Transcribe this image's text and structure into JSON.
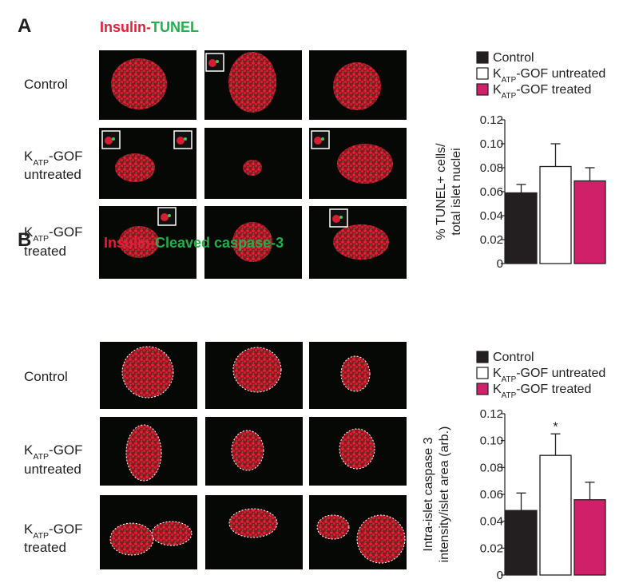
{
  "panels": [
    {
      "letter": "A",
      "stain": [
        {
          "text": "Insulin",
          "color": "#e0203a"
        },
        {
          "text": "-",
          "color": "#e0203a"
        },
        {
          "text": "TUNEL",
          "color": "#22b04b"
        }
      ],
      "rows": [
        [
          [
            {
              "text": "Control"
            }
          ]
        ],
        [
          [
            {
              "text": "K"
            },
            {
              "text": "ATP",
              "sub": true
            },
            {
              "text": "-GOF"
            }
          ],
          [
            {
              "text": "untreated"
            }
          ]
        ],
        [
          [
            {
              "text": "K"
            },
            {
              "text": "ATP",
              "sub": true
            },
            {
              "text": "-GOF"
            }
          ],
          [
            {
              "text": "treated"
            }
          ]
        ]
      ]
    },
    {
      "letter": "B",
      "stain": [
        {
          "text": "Insulin",
          "color": "#e0203a"
        },
        {
          "text": "-",
          "color": "#e0203a"
        },
        {
          "text": "Cleaved caspase-3",
          "color": "#22b04b"
        }
      ],
      "rows": [
        [
          [
            {
              "text": "Control"
            }
          ]
        ],
        [
          [
            {
              "text": "K"
            },
            {
              "text": "ATP",
              "sub": true
            },
            {
              "text": "-GOF"
            }
          ],
          [
            {
              "text": "untreated"
            }
          ]
        ],
        [
          [
            {
              "text": "K"
            },
            {
              "text": "ATP",
              "sub": true
            },
            {
              "text": "-GOF"
            }
          ],
          [
            {
              "text": "treated"
            }
          ]
        ]
      ]
    }
  ],
  "chart_data": [
    {
      "type": "bar",
      "ylabel": [
        "% TUNEL+ cells/",
        "total islet nuclei"
      ],
      "ylim": [
        0,
        0.12
      ],
      "yticks": [
        0,
        0.02,
        0.04,
        0.06,
        0.08,
        {
          "value": 0.1,
          "label": "0.10"
        },
        0.12
      ],
      "series": [
        {
          "name": [
            {
              "text": "Control"
            }
          ],
          "color": "#231f20",
          "values": [
            0.059
          ],
          "errors": [
            0.007
          ]
        },
        {
          "name": [
            {
              "text": "K"
            },
            {
              "text": "ATP",
              "sub": true
            },
            {
              "text": "-GOF untreated"
            }
          ],
          "color": "#ffffff",
          "values": [
            0.081
          ],
          "errors": [
            0.019
          ]
        },
        {
          "name": [
            {
              "text": "K"
            },
            {
              "text": "ATP",
              "sub": true
            },
            {
              "text": "-GOF treated"
            }
          ],
          "color": "#d1206a",
          "values": [
            0.069
          ],
          "errors": [
            0.011
          ]
        }
      ]
    },
    {
      "type": "bar",
      "ylabel": [
        "Intra-islet caspase 3",
        "intensity/islet area (arb.)"
      ],
      "ylim": [
        0,
        0.12
      ],
      "yticks": [
        0,
        0.02,
        0.04,
        0.06,
        0.08,
        {
          "value": 0.1,
          "label": "0.10"
        },
        0.12
      ],
      "series": [
        {
          "name": [
            {
              "text": "Control"
            }
          ],
          "color": "#231f20",
          "values": [
            0.048
          ],
          "errors": [
            0.013
          ]
        },
        {
          "name": [
            {
              "text": "K"
            },
            {
              "text": "ATP",
              "sub": true
            },
            {
              "text": "-GOF untreated"
            }
          ],
          "color": "#ffffff",
          "values": [
            0.089
          ],
          "errors": [
            0.016
          ],
          "annotation": "*"
        },
        {
          "name": [
            {
              "text": "K"
            },
            {
              "text": "ATP",
              "sub": true
            },
            {
              "text": "-GOF treated"
            }
          ],
          "color": "#d1206a",
          "values": [
            0.056
          ],
          "errors": [
            0.013
          ]
        }
      ]
    }
  ]
}
